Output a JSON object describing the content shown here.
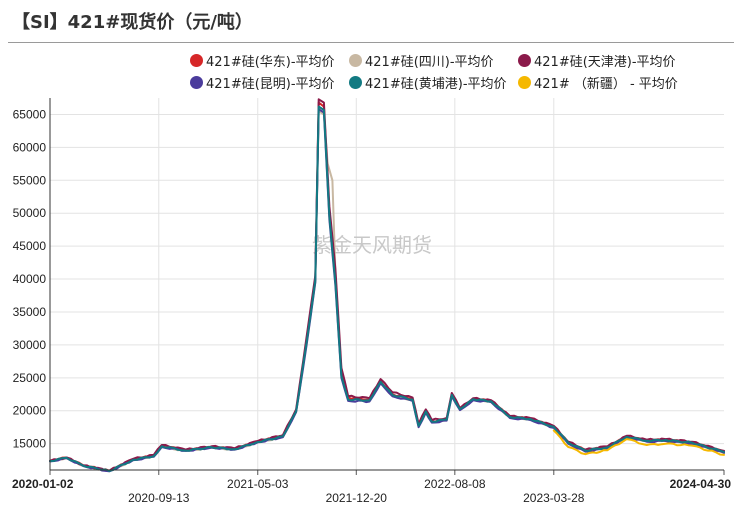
{
  "title": "【SI】421#现货价（元/吨）",
  "watermark": "紫金天风期货",
  "chart_data": {
    "type": "line",
    "title": "【SI】421#现货价（元/吨）",
    "xlabel": "",
    "ylabel": "",
    "x_range": [
      "2020-01-02",
      "2024-04-30"
    ],
    "x_ticks": [
      "2020-01-02",
      "2020-09-13",
      "2021-05-03",
      "2021-12-20",
      "2022-08-08",
      "2023-03-28",
      "2024-04-30"
    ],
    "y_ticks": [
      15000,
      20000,
      25000,
      30000,
      35000,
      40000,
      45000,
      50000,
      55000,
      60000,
      65000
    ],
    "ylim": [
      11000,
      67500
    ],
    "grid": true,
    "legend_position": "top",
    "series": [
      {
        "name": "421#硅(华东)-平均价",
        "color": "#d62728",
        "points": [
          [
            "2020-01-02",
            12400
          ],
          [
            "2020-02-10",
            12900
          ],
          [
            "2020-03-20",
            11700
          ],
          [
            "2020-05-20",
            10900
          ],
          [
            "2020-07-15",
            12600
          ],
          [
            "2020-09-01",
            13200
          ],
          [
            "2020-09-20",
            14700
          ],
          [
            "2020-11-15",
            14000
          ],
          [
            "2021-01-15",
            14500
          ],
          [
            "2021-03-10",
            14200
          ],
          [
            "2021-05-03",
            15300
          ],
          [
            "2021-07-01",
            16200
          ],
          [
            "2021-08-01",
            20000
          ],
          [
            "2021-08-25",
            30500
          ],
          [
            "2021-09-15",
            40000
          ],
          [
            "2021-09-23",
            66800
          ],
          [
            "2021-10-05",
            66200
          ],
          [
            "2021-10-18",
            50000
          ],
          [
            "2021-11-01",
            40000
          ],
          [
            "2021-11-15",
            26000
          ],
          [
            "2021-12-01",
            22000
          ],
          [
            "2022-01-20",
            21700
          ],
          [
            "2022-02-15",
            24500
          ],
          [
            "2022-03-15",
            22500
          ],
          [
            "2022-05-01",
            21800
          ],
          [
            "2022-05-15",
            17800
          ],
          [
            "2022-06-01",
            20000
          ],
          [
            "2022-06-15",
            18400
          ],
          [
            "2022-07-20",
            18700
          ],
          [
            "2022-08-01",
            22500
          ],
          [
            "2022-08-20",
            20300
          ],
          [
            "2022-09-20",
            21800
          ],
          [
            "2022-11-01",
            21500
          ],
          [
            "2022-12-15",
            19100
          ],
          [
            "2023-02-01",
            18800
          ],
          [
            "2023-03-28",
            17600
          ],
          [
            "2023-05-01",
            15200
          ],
          [
            "2023-06-10",
            14000
          ],
          [
            "2023-08-01",
            14500
          ],
          [
            "2023-09-15",
            16100
          ],
          [
            "2023-11-01",
            15500
          ],
          [
            "2023-12-15",
            15600
          ],
          [
            "2024-02-15",
            15200
          ],
          [
            "2024-04-30",
            13800
          ]
        ]
      },
      {
        "name": "421#硅(四川)-平均价",
        "color": "#c8b8a2",
        "points": [
          [
            "2020-01-02",
            12300
          ],
          [
            "2020-02-10",
            12800
          ],
          [
            "2020-03-20",
            11600
          ],
          [
            "2020-05-20",
            10800
          ],
          [
            "2020-07-15",
            12500
          ],
          [
            "2020-09-01",
            13100
          ],
          [
            "2020-09-20",
            14500
          ],
          [
            "2020-11-15",
            13900
          ],
          [
            "2021-01-15",
            14400
          ],
          [
            "2021-03-10",
            14100
          ],
          [
            "2021-05-03",
            15200
          ],
          [
            "2021-07-01",
            16000
          ],
          [
            "2021-08-01",
            19800
          ],
          [
            "2021-08-25",
            30000
          ],
          [
            "2021-09-15",
            39500
          ],
          [
            "2021-09-23",
            65500
          ],
          [
            "2021-10-05",
            65000
          ],
          [
            "2021-10-14",
            57500
          ],
          [
            "2021-10-25",
            55000
          ],
          [
            "2021-11-01",
            41000
          ],
          [
            "2021-11-15",
            25500
          ],
          [
            "2021-12-01",
            21800
          ],
          [
            "2022-01-20",
            21600
          ],
          [
            "2022-02-15",
            24300
          ],
          [
            "2022-03-15",
            22300
          ],
          [
            "2022-05-01",
            21600
          ],
          [
            "2022-05-15",
            17600
          ],
          [
            "2022-06-01",
            19800
          ],
          [
            "2022-06-15",
            18300
          ],
          [
            "2022-07-20",
            18600
          ],
          [
            "2022-08-01",
            22300
          ],
          [
            "2022-08-20",
            20200
          ],
          [
            "2022-09-20",
            21700
          ],
          [
            "2022-11-01",
            21400
          ],
          [
            "2022-12-15",
            19000
          ],
          [
            "2023-02-01",
            18700
          ],
          [
            "2023-03-28",
            17500
          ],
          [
            "2023-05-01",
            15100
          ],
          [
            "2023-06-10",
            13900
          ],
          [
            "2023-08-01",
            14400
          ],
          [
            "2023-09-15",
            16000
          ],
          [
            "2023-11-01",
            15400
          ],
          [
            "2023-12-15",
            15500
          ],
          [
            "2024-02-15",
            15100
          ],
          [
            "2024-04-30",
            13700
          ]
        ]
      },
      {
        "name": "421#硅(天津港)-平均价",
        "color": "#8b1a4a",
        "points": [
          [
            "2020-01-02",
            12400
          ],
          [
            "2020-02-10",
            12900
          ],
          [
            "2020-03-20",
            11700
          ],
          [
            "2020-05-20",
            10900
          ],
          [
            "2020-07-15",
            12700
          ],
          [
            "2020-09-01",
            13300
          ],
          [
            "2020-09-20",
            14800
          ],
          [
            "2020-11-15",
            14100
          ],
          [
            "2021-01-15",
            14600
          ],
          [
            "2021-03-10",
            14300
          ],
          [
            "2021-05-03",
            15400
          ],
          [
            "2021-07-01",
            16300
          ],
          [
            "2021-08-01",
            20200
          ],
          [
            "2021-08-25",
            31000
          ],
          [
            "2021-09-15",
            40500
          ],
          [
            "2021-09-23",
            67300
          ],
          [
            "2021-10-05",
            66800
          ],
          [
            "2021-10-18",
            51000
          ],
          [
            "2021-11-01",
            41500
          ],
          [
            "2021-11-15",
            26500
          ],
          [
            "2021-12-01",
            22200
          ],
          [
            "2022-01-20",
            21900
          ],
          [
            "2022-02-15",
            24800
          ],
          [
            "2022-03-15",
            22800
          ],
          [
            "2022-05-01",
            22000
          ],
          [
            "2022-05-15",
            18000
          ],
          [
            "2022-06-01",
            20200
          ],
          [
            "2022-06-15",
            18600
          ],
          [
            "2022-07-20",
            18900
          ],
          [
            "2022-08-01",
            22700
          ],
          [
            "2022-08-20",
            20400
          ],
          [
            "2022-09-20",
            21900
          ],
          [
            "2022-11-01",
            21600
          ],
          [
            "2022-12-15",
            19200
          ],
          [
            "2023-02-01",
            18900
          ],
          [
            "2023-03-28",
            17700
          ],
          [
            "2023-05-01",
            15300
          ],
          [
            "2023-06-10",
            14100
          ],
          [
            "2023-08-01",
            14600
          ],
          [
            "2023-09-15",
            16200
          ],
          [
            "2023-11-01",
            15600
          ],
          [
            "2023-12-15",
            15700
          ],
          [
            "2024-02-15",
            15300
          ],
          [
            "2024-04-30",
            13900
          ]
        ]
      },
      {
        "name": "421#硅(昆明)-平均价",
        "color": "#4b3c9c",
        "points": [
          [
            "2020-01-02",
            12300
          ],
          [
            "2020-02-10",
            12800
          ],
          [
            "2020-03-20",
            11600
          ],
          [
            "2020-05-20",
            10800
          ],
          [
            "2020-07-15",
            12500
          ],
          [
            "2020-09-01",
            13000
          ],
          [
            "2020-09-20",
            14500
          ],
          [
            "2020-11-15",
            13900
          ],
          [
            "2021-01-15",
            14400
          ],
          [
            "2021-03-10",
            14100
          ],
          [
            "2021-05-03",
            15200
          ],
          [
            "2021-07-01",
            16000
          ],
          [
            "2021-08-01",
            19800
          ],
          [
            "2021-08-25",
            29800
          ],
          [
            "2021-09-15",
            39500
          ],
          [
            "2021-09-23",
            65800
          ],
          [
            "2021-10-05",
            65300
          ],
          [
            "2021-10-18",
            49000
          ],
          [
            "2021-11-01",
            39000
          ],
          [
            "2021-11-15",
            25000
          ],
          [
            "2021-12-01",
            21500
          ],
          [
            "2022-01-20",
            21400
          ],
          [
            "2022-02-15",
            24200
          ],
          [
            "2022-03-15",
            22200
          ],
          [
            "2022-05-01",
            21500
          ],
          [
            "2022-05-15",
            17500
          ],
          [
            "2022-06-01",
            19700
          ],
          [
            "2022-06-15",
            18200
          ],
          [
            "2022-07-20",
            18500
          ],
          [
            "2022-08-01",
            22200
          ],
          [
            "2022-08-20",
            20100
          ],
          [
            "2022-09-20",
            21600
          ],
          [
            "2022-11-01",
            21300
          ],
          [
            "2022-12-15",
            18900
          ],
          [
            "2023-02-01",
            18600
          ],
          [
            "2023-03-28",
            17400
          ],
          [
            "2023-05-01",
            15000
          ],
          [
            "2023-06-10",
            13800
          ],
          [
            "2023-08-01",
            14300
          ],
          [
            "2023-09-15",
            15900
          ],
          [
            "2023-11-01",
            15300
          ],
          [
            "2023-12-15",
            15400
          ],
          [
            "2024-02-15",
            15000
          ],
          [
            "2024-04-30",
            13600
          ]
        ]
      },
      {
        "name": "421#硅(黄埔港)-平均价",
        "color": "#127a82",
        "points": [
          [
            "2020-01-02",
            12350
          ],
          [
            "2020-02-10",
            12850
          ],
          [
            "2020-03-20",
            11650
          ],
          [
            "2020-05-20",
            10850
          ],
          [
            "2020-07-15",
            12550
          ],
          [
            "2020-09-01",
            13100
          ],
          [
            "2020-09-20",
            14600
          ],
          [
            "2020-11-15",
            13950
          ],
          [
            "2021-01-15",
            14450
          ],
          [
            "2021-03-10",
            14150
          ],
          [
            "2021-05-03",
            15250
          ],
          [
            "2021-07-01",
            16100
          ],
          [
            "2021-08-01",
            19900
          ],
          [
            "2021-08-25",
            30200
          ],
          [
            "2021-09-15",
            39800
          ],
          [
            "2021-09-23",
            66200
          ],
          [
            "2021-10-05",
            65700
          ],
          [
            "2021-10-18",
            49500
          ],
          [
            "2021-11-01",
            39500
          ],
          [
            "2021-11-15",
            25300
          ],
          [
            "2021-12-01",
            21700
          ],
          [
            "2022-01-20",
            21600
          ],
          [
            "2022-02-15",
            24400
          ],
          [
            "2022-03-15",
            22400
          ],
          [
            "2022-05-01",
            21700
          ],
          [
            "2022-05-15",
            17700
          ],
          [
            "2022-06-01",
            19900
          ],
          [
            "2022-06-15",
            18350
          ],
          [
            "2022-07-20",
            18650
          ],
          [
            "2022-08-01",
            22400
          ],
          [
            "2022-08-20",
            20250
          ],
          [
            "2022-09-20",
            21750
          ],
          [
            "2022-11-01",
            21450
          ],
          [
            "2022-12-15",
            19050
          ],
          [
            "2023-02-01",
            18750
          ],
          [
            "2023-03-28",
            17550
          ],
          [
            "2023-05-01",
            15150
          ],
          [
            "2023-06-10",
            13950
          ],
          [
            "2023-08-01",
            14450
          ],
          [
            "2023-09-15",
            16050
          ],
          [
            "2023-11-01",
            15450
          ],
          [
            "2023-12-15",
            15550
          ],
          [
            "2024-02-15",
            15150
          ],
          [
            "2024-04-30",
            13750
          ]
        ]
      },
      {
        "name": "421# （新疆） - 平均价",
        "color": "#f5b800",
        "points": [
          [
            "2023-03-28",
            17000
          ],
          [
            "2023-05-01",
            14500
          ],
          [
            "2023-06-10",
            13400
          ],
          [
            "2023-08-01",
            14000
          ],
          [
            "2023-09-15",
            15700
          ],
          [
            "2023-11-01",
            14800
          ],
          [
            "2023-12-15",
            15000
          ],
          [
            "2024-02-15",
            14700
          ],
          [
            "2024-04-30",
            13300
          ]
        ]
      }
    ]
  }
}
